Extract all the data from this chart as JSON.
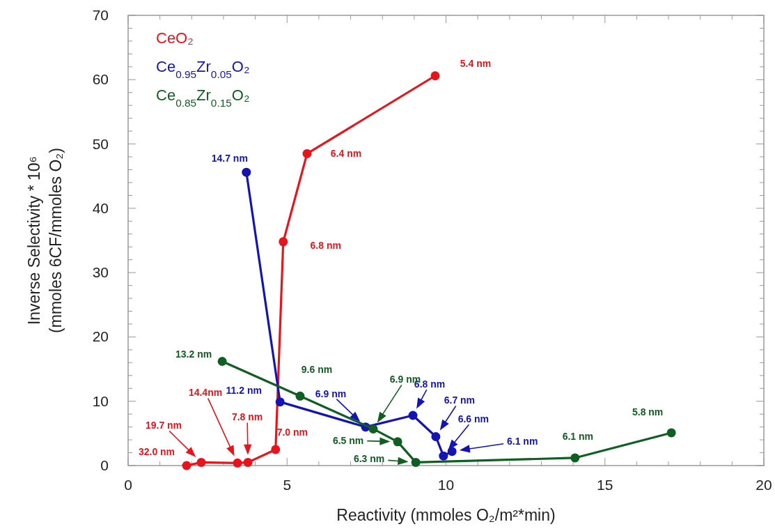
{
  "chart_data": {
    "type": "line",
    "xlabel": "Reactivity (mmoles O₂/m²*min)",
    "ylabel": "Inverse Selectivity * 10⁶\n(mmoles 6CF/mmoles O₂)",
    "xlim": [
      0,
      20
    ],
    "xticks": [
      0,
      {
        "value": 1,
        "label": null
      },
      {
        "value": 2,
        "label": null
      },
      {
        "value": 3,
        "label": null
      },
      {
        "value": 4,
        "label": null
      },
      5,
      {
        "value": 6,
        "label": null
      },
      {
        "value": 7,
        "label": null
      },
      {
        "value": 8,
        "label": null
      },
      {
        "value": 9,
        "label": null
      },
      10,
      {
        "value": 11,
        "label": null
      },
      {
        "value": 12,
        "label": null
      },
      {
        "value": 13,
        "label": null
      },
      {
        "value": 14,
        "label": null
      },
      15,
      {
        "value": 16,
        "label": null
      },
      {
        "value": 17,
        "label": null
      },
      {
        "value": 18,
        "label": null
      },
      {
        "value": 19,
        "label": null
      },
      20
    ],
    "ylim": [
      0,
      70
    ],
    "yticks": [
      0,
      {
        "value": 2,
        "label": null
      },
      {
        "value": 4,
        "label": null
      },
      {
        "value": 6,
        "label": null
      },
      {
        "value": 8,
        "label": null
      },
      10,
      {
        "value": 12,
        "label": null
      },
      {
        "value": 14,
        "label": null
      },
      {
        "value": 16,
        "label": null
      },
      {
        "value": 18,
        "label": null
      },
      20,
      {
        "value": 22,
        "label": null
      },
      {
        "value": 24,
        "label": null
      },
      {
        "value": 26,
        "label": null
      },
      {
        "value": 28,
        "label": null
      },
      30,
      {
        "value": 32,
        "label": null
      },
      {
        "value": 34,
        "label": null
      },
      {
        "value": 36,
        "label": null
      },
      {
        "value": 38,
        "label": null
      },
      40,
      {
        "value": 42,
        "label": null
      },
      {
        "value": 44,
        "label": null
      },
      {
        "value": 46,
        "label": null
      },
      {
        "value": 48,
        "label": null
      },
      50,
      {
        "value": 52,
        "label": null
      },
      {
        "value": 54,
        "label": null
      },
      {
        "value": 56,
        "label": null
      },
      {
        "value": 58,
        "label": null
      },
      60,
      {
        "value": 62,
        "label": null
      },
      {
        "value": 64,
        "label": null
      },
      {
        "value": 66,
        "label": null
      },
      {
        "value": 68,
        "label": null
      },
      70
    ],
    "grid": false,
    "legend": "top left",
    "marker": "circle",
    "line_style": "solid",
    "series": [
      {
        "name": "CeO₂",
        "color": "#e8141b",
        "x": [
          1.84,
          2.3,
          3.44,
          3.77,
          4.64,
          4.88,
          5.63,
          9.66
        ],
        "values": [
          0,
          0.5,
          0.4,
          0.5,
          2.5,
          34.8,
          48.5,
          60.6
        ]
      },
      {
        "name": "Ce$_{0.95}$Zr$_{0.05}$O₂",
        "color": "#1414b4",
        "x": [
          3.72,
          4.78,
          7.47,
          8.96,
          9.68,
          9.92,
          10.19
        ],
        "values": [
          45.6,
          9.9,
          6.0,
          7.8,
          4.5,
          1.5,
          2.2
        ]
      },
      {
        "name": "Ce$_{0.85}$Zr$_{0.15}$O₂",
        "color": "#0f5e22",
        "x": [
          2.96,
          5.41,
          7.71,
          8.48,
          9.05,
          14.06,
          17.09
        ],
        "values": [
          16.2,
          10.8,
          5.7,
          3.7,
          0.5,
          1.2,
          5.1
        ]
      }
    ],
    "annotations": [
      {
        "text": "32.0 nm",
        "x": 1.84,
        "y": 0
      },
      "19.7 nm",
      "14.4nm",
      "7.8 nm",
      {
        "text": "7.0 nm",
        "x": 4.64,
        "y": 2.5
      },
      {
        "text": "6.8 nm",
        "x": 4.88,
        "y": 34.8
      },
      {
        "text": "6.4 nm",
        "x": 5.63,
        "y": 48.5
      },
      {
        "text": "5.4 nm",
        "x": 9.66,
        "y": 60.6
      },
      {
        "text": "14.7 nm",
        "x": 3.72,
        "y": 45.6
      },
      {
        "text": "11.2 nm",
        "x": 4.78,
        "y": 9.9
      },
      "6.9 nm",
      {
        "text": "6.8 nm",
        "x": 8.96,
        "y": 7.8
      },
      "6.7 nm",
      "6.6 nm",
      "6.1 nm",
      {
        "text": "13.2 nm",
        "x": 2.96,
        "y": 16.2
      },
      {
        "text": "9.6 nm",
        "x": 5.41,
        "y": 10.8
      },
      "6.9 nm",
      "6.5 nm",
      "6.3 nm",
      {
        "text": "6.1 nm",
        "x": 14.06,
        "y": 1.2
      },
      {
        "text": "5.8 nm",
        "x": 17.09,
        "y": 5.1
      }
    ]
  }
}
